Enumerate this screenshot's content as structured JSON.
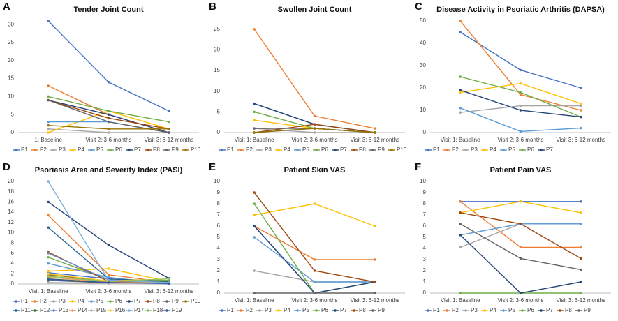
{
  "chart_data": [
    {
      "type": "line",
      "label": "A",
      "title": "Tender Joint Count",
      "categories": [
        "1: Baseline",
        "Visit 2: 3-6 months",
        "Visit 3: 6-12 months"
      ],
      "ylim": [
        0,
        31
      ],
      "yticks": [
        0,
        5,
        10,
        15,
        20,
        25,
        30
      ],
      "series": [
        {
          "name": "P1",
          "color": "#4472c4",
          "values": [
            31,
            14,
            6
          ]
        },
        {
          "name": "P2",
          "color": "#ed7d31",
          "values": [
            13,
            5,
            0
          ]
        },
        {
          "name": "P3",
          "color": "#a5a5a5",
          "values": [
            1,
            0,
            0
          ]
        },
        {
          "name": "P4",
          "color": "#ffc000",
          "values": [
            0,
            6,
            1
          ]
        },
        {
          "name": "P5",
          "color": "#5b9bd5",
          "values": [
            3,
            3,
            0
          ]
        },
        {
          "name": "P6",
          "color": "#70ad47",
          "values": [
            10,
            6,
            3
          ]
        },
        {
          "name": "P7",
          "color": "#264478",
          "values": [
            9,
            5,
            0
          ]
        },
        {
          "name": "P8",
          "color": "#9e480e",
          "values": [
            9,
            4,
            1
          ]
        },
        {
          "name": "P9",
          "color": "#636363",
          "values": [
            9,
            3,
            0
          ]
        },
        {
          "name": "P10",
          "color": "#997300",
          "values": [
            2,
            1,
            1
          ]
        }
      ]
    },
    {
      "type": "line",
      "label": "B",
      "title": "Swollen Joint Count",
      "categories": [
        "Visit 1: Baseline",
        "Visit 2: 3-6 months",
        "Visit 3: 6-12 months"
      ],
      "ylim": [
        0,
        27
      ],
      "yticks": [
        0,
        5,
        10,
        15,
        20,
        25
      ],
      "series": [
        {
          "name": "P1",
          "color": "#4472c4",
          "values": [
            7,
            2,
            0
          ]
        },
        {
          "name": "P2",
          "color": "#ed7d31",
          "values": [
            25,
            4,
            1
          ]
        },
        {
          "name": "P3",
          "color": "#a5a5a5",
          "values": [
            1,
            0,
            0
          ]
        },
        {
          "name": "P4",
          "color": "#ffc000",
          "values": [
            3,
            1,
            0
          ]
        },
        {
          "name": "P5",
          "color": "#5b9bd5",
          "values": [
            0,
            1,
            0
          ]
        },
        {
          "name": "P6",
          "color": "#70ad47",
          "values": [
            5,
            1,
            0
          ]
        },
        {
          "name": "P7",
          "color": "#264478",
          "values": [
            7,
            2,
            0
          ]
        },
        {
          "name": "P8",
          "color": "#9e480e",
          "values": [
            0,
            2,
            0
          ]
        },
        {
          "name": "P9",
          "color": "#636363",
          "values": [
            1,
            1,
            0
          ]
        },
        {
          "name": "P10",
          "color": "#997300",
          "values": [
            0,
            1,
            0
          ]
        }
      ]
    },
    {
      "type": "line",
      "label": "C",
      "title": "Disease Activity in Psoriatic Arthritis (DAPSA)",
      "categories": [
        "Visit 1: Baseline",
        "Visit 2: 3-6 months",
        "Visit 3: 6-12 months"
      ],
      "ylim": [
        0,
        50
      ],
      "yticks": [
        0,
        10,
        20,
        30,
        40,
        50
      ],
      "series": [
        {
          "name": "P1",
          "color": "#4472c4",
          "values": [
            45,
            28,
            20
          ]
        },
        {
          "name": "P2",
          "color": "#ed7d31",
          "values": [
            50,
            17,
            10
          ]
        },
        {
          "name": "P3",
          "color": "#a5a5a5",
          "values": [
            9,
            12,
            12
          ]
        },
        {
          "name": "P4",
          "color": "#ffc000",
          "values": [
            18,
            22,
            13
          ]
        },
        {
          "name": "P5",
          "color": "#5b9bd5",
          "values": [
            11,
            0.5,
            2
          ]
        },
        {
          "name": "P6",
          "color": "#70ad47",
          "values": [
            25,
            18,
            7
          ]
        },
        {
          "name": "P7",
          "color": "#264478",
          "values": [
            19,
            10,
            7
          ]
        }
      ]
    },
    {
      "type": "line",
      "label": "D",
      "title": "Psoriasis Area and Severity Index (PASI)",
      "categories": [
        "Visit 1: Baseline",
        "Visit 2: 3-6 months",
        "Visit 3: 6-12 months"
      ],
      "ylim": [
        0,
        20
      ],
      "yticks": [
        0,
        2,
        4,
        6,
        8,
        10,
        12,
        14,
        16,
        18,
        20
      ],
      "series": [
        {
          "name": "P1",
          "color": "#4472c4",
          "values": [
            2.2,
            1.0,
            0.3
          ]
        },
        {
          "name": "P2",
          "color": "#ed7d31",
          "values": [
            13.4,
            1.8,
            0.3
          ]
        },
        {
          "name": "P3",
          "color": "#a5a5a5",
          "values": [
            0.3,
            0.1,
            0
          ]
        },
        {
          "name": "P4",
          "color": "#ffc000",
          "values": [
            2.5,
            3.0,
            0.5
          ]
        },
        {
          "name": "P5",
          "color": "#5b9bd5",
          "values": [
            4.0,
            1.3,
            0
          ]
        },
        {
          "name": "P6",
          "color": "#70ad47",
          "values": [
            5.2,
            0.9,
            0.7
          ]
        },
        {
          "name": "P7",
          "color": "#264478",
          "values": [
            16,
            7.6,
            1.1
          ]
        },
        {
          "name": "P8",
          "color": "#9e480e",
          "values": [
            6.2,
            0.5,
            0.2
          ]
        },
        {
          "name": "P9",
          "color": "#636363",
          "values": [
            0.7,
            0.2,
            0.1
          ]
        },
        {
          "name": "P10",
          "color": "#997300",
          "values": [
            1.8,
            0.6,
            0.3
          ]
        },
        {
          "name": "P11",
          "color": "#255e91",
          "values": [
            11,
            1.0,
            0.5
          ]
        },
        {
          "name": "P12",
          "color": "#43682b",
          "values": [
            1.0,
            0.3,
            0.4
          ]
        },
        {
          "name": "P13",
          "color": "#698ed0",
          "values": [
            6.0,
            0.8,
            0.2
          ]
        },
        {
          "name": "P14",
          "color": "#f1975a",
          "values": [
            1.3,
            0.4,
            0.2
          ]
        },
        {
          "name": "P15",
          "color": "#b7b7b7",
          "values": [
            0.2,
            0.1,
            0.1
          ]
        },
        {
          "name": "P16",
          "color": "#ffcd33",
          "values": [
            2.0,
            0.6,
            1.0
          ]
        },
        {
          "name": "P17",
          "color": "#7cafdd",
          "values": [
            20,
            0.7,
            0.3
          ]
        },
        {
          "name": "P18",
          "color": "#8cc168",
          "values": [
            1.5,
            0.5,
            1.0
          ]
        },
        {
          "name": "P19",
          "color": "#335aa1",
          "values": [
            0.9,
            0.3,
            0.1
          ]
        }
      ]
    },
    {
      "type": "line",
      "label": "E",
      "title": "Patient Skin VAS",
      "categories": [
        "Visit 1: Baseline",
        "Visit 2: 3-6 months",
        "Visit 3: 6-12 months"
      ],
      "ylim": [
        0,
        10
      ],
      "yticks": [
        0,
        1,
        2,
        3,
        4,
        5,
        6,
        7,
        8,
        9,
        10
      ],
      "series": [
        {
          "name": "P1",
          "color": "#4472c4",
          "values": [
            6,
            0,
            1
          ]
        },
        {
          "name": "P2",
          "color": "#ed7d31",
          "values": [
            6,
            3,
            3
          ]
        },
        {
          "name": "P3",
          "color": "#a5a5a5",
          "values": [
            2,
            1,
            1
          ]
        },
        {
          "name": "P4",
          "color": "#ffc000",
          "values": [
            7,
            8,
            6
          ]
        },
        {
          "name": "P5",
          "color": "#5b9bd5",
          "values": [
            5,
            1,
            1
          ]
        },
        {
          "name": "P6",
          "color": "#70ad47",
          "values": [
            8,
            0,
            1
          ]
        },
        {
          "name": "P7",
          "color": "#264478",
          "values": [
            6,
            0,
            1
          ]
        },
        {
          "name": "P8",
          "color": "#9e480e",
          "values": [
            9,
            2,
            1
          ]
        },
        {
          "name": "P9",
          "color": "#636363",
          "values": [
            0,
            0,
            0
          ]
        }
      ]
    },
    {
      "type": "line",
      "label": "F",
      "title": "Patient Pain VAS",
      "categories": [
        "Visit 1: Baseline",
        "Visit 2: 3-6 months",
        "Visit 3: 6-12 months"
      ],
      "ylim": [
        0,
        10
      ],
      "yticks": [
        0,
        1,
        2,
        3,
        4,
        5,
        6,
        7,
        8,
        9,
        10
      ],
      "series": [
        {
          "name": "P1",
          "color": "#4472c4",
          "values": [
            8.2,
            8.2,
            8.2
          ]
        },
        {
          "name": "P2",
          "color": "#ed7d31",
          "values": [
            8.2,
            4.1,
            4.1
          ]
        },
        {
          "name": "P3",
          "color": "#a5a5a5",
          "values": [
            4.1,
            6.2,
            6.2
          ]
        },
        {
          "name": "P4",
          "color": "#ffc000",
          "values": [
            7.2,
            8.2,
            7.2
          ]
        },
        {
          "name": "P5",
          "color": "#5b9bd5",
          "values": [
            5.2,
            6.2,
            6.2
          ]
        },
        {
          "name": "P6",
          "color": "#70ad47",
          "values": [
            0,
            0,
            0
          ]
        },
        {
          "name": "P7",
          "color": "#264478",
          "values": [
            5.2,
            0,
            1.0
          ]
        },
        {
          "name": "P8",
          "color": "#9e480e",
          "values": [
            7.2,
            6.2,
            3.1
          ]
        },
        {
          "name": "P9",
          "color": "#636363",
          "values": [
            6.2,
            3.1,
            2.1
          ]
        }
      ]
    }
  ]
}
